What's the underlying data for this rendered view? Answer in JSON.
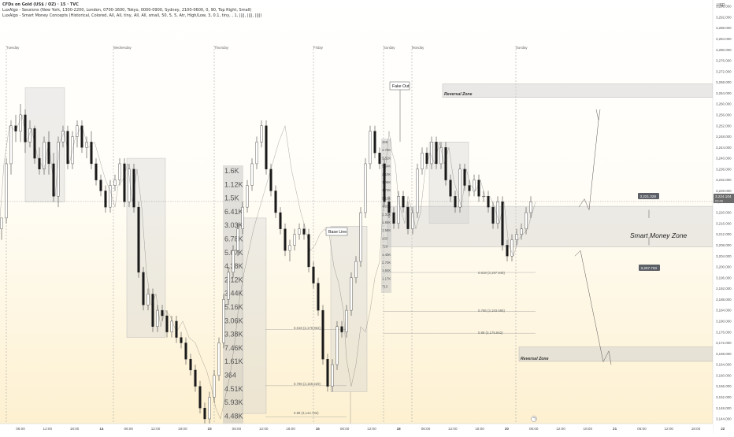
{
  "header": {
    "symbol_line": "CFDs on Gold (US$ / OZ) · 15 · TVC",
    "indicator_1": "LuxAlgo - Sessions (New York, 1300-2200, London, 0700-1600, Tokyo, 0000-0900, Sydney, 2100-0600, 0, 90, Top Right, Small)",
    "indicator_2": "LuxAlgo - Smart Money Concepts (Historical, Colored, All, All, tiny, All, All, small, 50, 5, 5, Atr, High/Low, 3, 0.1, tiny, , 1, ||||, ||||, ||||)"
  },
  "axis": {
    "currency": "USD",
    "price_ticks": [
      "3,296.000",
      "3,292.000",
      "3,288.000",
      "3,284.000",
      "3,280.000",
      "3,276.000",
      "3,272.000",
      "3,268.000",
      "3,264.000",
      "3,260.000",
      "3,256.000",
      "3,252.000",
      "3,248.000",
      "3,244.000",
      "3,240.000",
      "3,236.000",
      "3,232.000",
      "3,228.000",
      "3,224.000",
      "3,220.000",
      "3,216.000",
      "3,212.000",
      "3,208.000",
      "3,204.000",
      "3,200.000",
      "3,196.000",
      "3,192.000",
      "3,188.000",
      "3,184.000",
      "3,180.000",
      "3,176.000",
      "3,172.000",
      "3,168.000",
      "3,164.000",
      "3,160.000",
      "3,156.000",
      "3,152.000",
      "3,148.000",
      "3,144.000"
    ],
    "time_ticks": [
      "06:00",
      "12:00",
      "18:00",
      "14",
      "06:00",
      "12:00",
      "18:00",
      "15",
      "06:00",
      "12:00",
      "18:00",
      "16",
      "06:00",
      "12:00",
      "18",
      "06:00",
      "12:00",
      "18:00",
      "20",
      "06:00",
      "12:00",
      "18:00",
      "21",
      "06:00",
      "12:00",
      "18:00",
      "22"
    ],
    "day_labels": [
      "Tuesday",
      "Wednesday",
      "Thursday",
      "Friday",
      "Sunday",
      "Monday",
      "Sunday"
    ]
  },
  "price_tags": {
    "current": "3,224.104",
    "current_sub": "09:46",
    "upper": "3,221.328",
    "lower": "3,207.703"
  },
  "annotations": {
    "fake_out": "Fake Out",
    "base_line": "Base Line",
    "reversal_top": "Reversal Zone",
    "reversal_bottom": "Reversal Zone",
    "smart_money_zone": "Smart Money Zone",
    "fib_a_618": "0.618 (3,176.962)",
    "fib_a_786": "0.786 (3,156.229)",
    "fib_a_88": "0.88 (3,144.782)",
    "fib_b_618": "0.618 (3,197.945)",
    "fib_b_786": "0.786 (3,183.595)",
    "fib_b_88": "0.88 (3,175.562)"
  },
  "volume_profile": {
    "left": [
      "1.6K",
      "1.12K",
      "1.5K",
      "6.41K",
      "3.03K",
      "6.78K",
      "5.07K",
      "4.38K",
      "2.12K",
      "3.44K",
      "5.16K",
      "3.06K",
      "3.38K",
      "7.46K",
      "1.61K",
      "364",
      "4.51K",
      "5.93K",
      "4.48K"
    ],
    "right": [
      "469",
      "2.73K",
      "5.52K",
      "5.64K",
      "2.10K",
      "1.95K",
      "1.73K",
      "5.15K",
      "4.03K",
      "1.31K",
      "1.85K",
      "1.58K",
      "233",
      "729",
      "1.40K",
      "2.70K",
      "1.84K",
      "1.17K",
      "713"
    ]
  },
  "colors": {
    "up": "#ffffff",
    "down": "#1a1a1a",
    "wick": "#222222",
    "zone": "#c8c8c8",
    "bg_bottom": "#fdf0cf"
  },
  "chart_data": {
    "type": "candlestick",
    "title": "CFDs on Gold (US$ / OZ) · 15 · TVC",
    "ylabel": "USD",
    "ylim": [
      3144,
      3296
    ],
    "path_x": [
      0,
      5,
      12,
      20,
      28,
      34,
      40,
      48,
      56,
      62,
      70,
      76,
      82,
      88,
      96,
      104,
      112,
      120,
      128,
      134,
      140,
      146,
      150,
      156,
      162,
      168,
      174,
      180,
      186,
      192,
      198,
      204,
      210,
      216,
      224,
      232,
      240,
      248,
      256,
      262,
      268,
      274,
      280,
      286,
      292,
      298,
      304,
      310,
      316,
      322,
      330,
      338,
      346,
      354,
      362,
      370,
      376,
      382,
      388,
      394,
      400,
      406,
      412,
      418,
      424,
      430,
      436,
      440,
      446,
      452,
      458,
      464,
      470,
      476,
      482,
      486,
      490,
      494,
      498,
      502,
      506,
      510,
      514,
      518,
      522,
      528,
      534,
      540,
      546,
      552,
      558,
      564,
      570,
      576,
      582,
      586,
      592,
      598,
      604,
      610,
      616,
      622,
      628,
      634,
      640,
      646,
      652,
      658,
      664,
      670,
      676,
      680
    ],
    "path_y": [
      3218,
      3238,
      3252,
      3250,
      3256,
      3246,
      3251,
      3240,
      3236,
      3246,
      3226,
      3246,
      3250,
      3238,
      3248,
      3252,
      3244,
      3246,
      3238,
      3232,
      3228,
      3222,
      3230,
      3232,
      3238,
      3224,
      3236,
      3222,
      3198,
      3186,
      3190,
      3178,
      3184,
      3182,
      3176,
      3180,
      3174,
      3172,
      3166,
      3162,
      3156,
      3148,
      3144,
      3152,
      3160,
      3172,
      3188,
      3198,
      3206,
      3214,
      3222,
      3230,
      3238,
      3246,
      3252,
      3236,
      3228,
      3220,
      3214,
      3206,
      3208,
      3212,
      3214,
      3212,
      3200,
      3194,
      3184,
      3166,
      3156,
      3164,
      3178,
      3176,
      3184,
      3196,
      3202,
      3220,
      3238,
      3250,
      3242,
      3238,
      3224,
      3220,
      3216,
      3226,
      3222,
      3214,
      3220,
      3236,
      3242,
      3238,
      3246,
      3238,
      3244,
      3232,
      3226,
      3222,
      3236,
      3230,
      3228,
      3232,
      3226,
      3226,
      3222,
      3216,
      3224,
      3208,
      3204,
      3210,
      3212,
      3214,
      3220,
      3224
    ],
    "candles": [
      {
        "x": 0,
        "o": 3214,
        "h": 3218,
        "l": 3210,
        "c": 3218
      },
      {
        "x": 6,
        "o": 3218,
        "h": 3240,
        "l": 3216,
        "c": 3238
      },
      {
        "x": 12,
        "o": 3238,
        "h": 3254,
        "l": 3234,
        "c": 3252
      },
      {
        "x": 18,
        "o": 3252,
        "h": 3256,
        "l": 3246,
        "c": 3250
      },
      {
        "x": 24,
        "o": 3250,
        "h": 3260,
        "l": 3246,
        "c": 3256
      },
      {
        "x": 30,
        "o": 3256,
        "h": 3258,
        "l": 3242,
        "c": 3246
      },
      {
        "x": 36,
        "o": 3246,
        "h": 3254,
        "l": 3244,
        "c": 3251
      },
      {
        "x": 42,
        "o": 3251,
        "h": 3252,
        "l": 3238,
        "c": 3240
      },
      {
        "x": 48,
        "o": 3240,
        "h": 3244,
        "l": 3234,
        "c": 3236
      },
      {
        "x": 54,
        "o": 3236,
        "h": 3248,
        "l": 3234,
        "c": 3246
      },
      {
        "x": 60,
        "o": 3246,
        "h": 3250,
        "l": 3234,
        "c": 3238
      },
      {
        "x": 66,
        "o": 3238,
        "h": 3242,
        "l": 3224,
        "c": 3226
      },
      {
        "x": 72,
        "o": 3226,
        "h": 3248,
        "l": 3222,
        "c": 3246
      },
      {
        "x": 78,
        "o": 3246,
        "h": 3252,
        "l": 3244,
        "c": 3250
      },
      {
        "x": 84,
        "o": 3250,
        "h": 3252,
        "l": 3236,
        "c": 3238
      },
      {
        "x": 90,
        "o": 3238,
        "h": 3250,
        "l": 3236,
        "c": 3248
      },
      {
        "x": 96,
        "o": 3248,
        "h": 3254,
        "l": 3244,
        "c": 3252
      },
      {
        "x": 102,
        "o": 3252,
        "h": 3254,
        "l": 3242,
        "c": 3244
      },
      {
        "x": 108,
        "o": 3244,
        "h": 3248,
        "l": 3240,
        "c": 3246
      },
      {
        "x": 114,
        "o": 3246,
        "h": 3250,
        "l": 3236,
        "c": 3238
      },
      {
        "x": 120,
        "o": 3238,
        "h": 3240,
        "l": 3230,
        "c": 3232
      },
      {
        "x": 126,
        "o": 3232,
        "h": 3234,
        "l": 3226,
        "c": 3228
      },
      {
        "x": 132,
        "o": 3228,
        "h": 3230,
        "l": 3220,
        "c": 3222
      },
      {
        "x": 138,
        "o": 3222,
        "h": 3232,
        "l": 3220,
        "c": 3230
      },
      {
        "x": 144,
        "o": 3230,
        "h": 3234,
        "l": 3228,
        "c": 3232
      },
      {
        "x": 150,
        "o": 3232,
        "h": 3240,
        "l": 3230,
        "c": 3238
      },
      {
        "x": 156,
        "o": 3238,
        "h": 3240,
        "l": 3222,
        "c": 3224
      },
      {
        "x": 162,
        "o": 3224,
        "h": 3238,
        "l": 3222,
        "c": 3236
      },
      {
        "x": 168,
        "o": 3236,
        "h": 3238,
        "l": 3220,
        "c": 3222
      },
      {
        "x": 174,
        "o": 3222,
        "h": 3224,
        "l": 3196,
        "c": 3198
      },
      {
        "x": 180,
        "o": 3198,
        "h": 3200,
        "l": 3184,
        "c": 3186
      },
      {
        "x": 186,
        "o": 3186,
        "h": 3192,
        "l": 3184,
        "c": 3190
      },
      {
        "x": 192,
        "o": 3190,
        "h": 3192,
        "l": 3176,
        "c": 3178
      },
      {
        "x": 198,
        "o": 3178,
        "h": 3186,
        "l": 3176,
        "c": 3184
      },
      {
        "x": 204,
        "o": 3184,
        "h": 3186,
        "l": 3180,
        "c": 3182
      },
      {
        "x": 210,
        "o": 3182,
        "h": 3184,
        "l": 3174,
        "c": 3176
      },
      {
        "x": 216,
        "o": 3176,
        "h": 3182,
        "l": 3174,
        "c": 3180
      },
      {
        "x": 222,
        "o": 3180,
        "h": 3182,
        "l": 3172,
        "c": 3174
      },
      {
        "x": 228,
        "o": 3174,
        "h": 3176,
        "l": 3170,
        "c": 3172
      },
      {
        "x": 234,
        "o": 3172,
        "h": 3174,
        "l": 3164,
        "c": 3166
      },
      {
        "x": 240,
        "o": 3166,
        "h": 3168,
        "l": 3160,
        "c": 3162
      },
      {
        "x": 246,
        "o": 3162,
        "h": 3164,
        "l": 3154,
        "c": 3156
      },
      {
        "x": 252,
        "o": 3156,
        "h": 3158,
        "l": 3146,
        "c": 3148
      },
      {
        "x": 258,
        "o": 3148,
        "h": 3150,
        "l": 3142,
        "c": 3144
      },
      {
        "x": 264,
        "o": 3144,
        "h": 3154,
        "l": 3142,
        "c": 3152
      },
      {
        "x": 270,
        "o": 3152,
        "h": 3162,
        "l": 3150,
        "c": 3160
      },
      {
        "x": 276,
        "o": 3160,
        "h": 3174,
        "l": 3158,
        "c": 3172
      },
      {
        "x": 282,
        "o": 3172,
        "h": 3190,
        "l": 3170,
        "c": 3188
      },
      {
        "x": 288,
        "o": 3188,
        "h": 3200,
        "l": 3186,
        "c": 3198
      },
      {
        "x": 294,
        "o": 3198,
        "h": 3208,
        "l": 3196,
        "c": 3206
      },
      {
        "x": 300,
        "o": 3206,
        "h": 3216,
        "l": 3204,
        "c": 3214
      },
      {
        "x": 306,
        "o": 3214,
        "h": 3224,
        "l": 3212,
        "c": 3222
      },
      {
        "x": 312,
        "o": 3222,
        "h": 3232,
        "l": 3220,
        "c": 3230
      },
      {
        "x": 318,
        "o": 3230,
        "h": 3240,
        "l": 3228,
        "c": 3238
      },
      {
        "x": 324,
        "o": 3238,
        "h": 3248,
        "l": 3236,
        "c": 3246
      },
      {
        "x": 330,
        "o": 3246,
        "h": 3254,
        "l": 3244,
        "c": 3252
      },
      {
        "x": 336,
        "o": 3252,
        "h": 3254,
        "l": 3234,
        "c": 3236
      },
      {
        "x": 342,
        "o": 3236,
        "h": 3238,
        "l": 3226,
        "c": 3228
      },
      {
        "x": 348,
        "o": 3228,
        "h": 3230,
        "l": 3218,
        "c": 3220
      },
      {
        "x": 354,
        "o": 3220,
        "h": 3222,
        "l": 3212,
        "c": 3214
      },
      {
        "x": 360,
        "o": 3214,
        "h": 3216,
        "l": 3204,
        "c": 3206
      },
      {
        "x": 366,
        "o": 3206,
        "h": 3210,
        "l": 3202,
        "c": 3208
      },
      {
        "x": 372,
        "o": 3208,
        "h": 3214,
        "l": 3206,
        "c": 3212
      },
      {
        "x": 378,
        "o": 3212,
        "h": 3216,
        "l": 3210,
        "c": 3214
      },
      {
        "x": 384,
        "o": 3214,
        "h": 3216,
        "l": 3210,
        "c": 3212
      },
      {
        "x": 390,
        "o": 3212,
        "h": 3214,
        "l": 3198,
        "c": 3200
      },
      {
        "x": 396,
        "o": 3200,
        "h": 3202,
        "l": 3192,
        "c": 3194
      },
      {
        "x": 402,
        "o": 3194,
        "h": 3196,
        "l": 3182,
        "c": 3184
      },
      {
        "x": 408,
        "o": 3184,
        "h": 3186,
        "l": 3164,
        "c": 3166
      },
      {
        "x": 414,
        "o": 3166,
        "h": 3168,
        "l": 3154,
        "c": 3156
      },
      {
        "x": 420,
        "o": 3156,
        "h": 3166,
        "l": 3154,
        "c": 3164
      },
      {
        "x": 426,
        "o": 3164,
        "h": 3180,
        "l": 3162,
        "c": 3178
      },
      {
        "x": 432,
        "o": 3178,
        "h": 3180,
        "l": 3174,
        "c": 3176
      },
      {
        "x": 438,
        "o": 3176,
        "h": 3186,
        "l": 3174,
        "c": 3184
      },
      {
        "x": 444,
        "o": 3184,
        "h": 3198,
        "l": 3182,
        "c": 3196
      },
      {
        "x": 450,
        "o": 3196,
        "h": 3204,
        "l": 3194,
        "c": 3202
      },
      {
        "x": 456,
        "o": 3202,
        "h": 3222,
        "l": 3200,
        "c": 3220
      },
      {
        "x": 462,
        "o": 3220,
        "h": 3240,
        "l": 3218,
        "c": 3238
      },
      {
        "x": 468,
        "o": 3238,
        "h": 3252,
        "l": 3236,
        "c": 3250
      },
      {
        "x": 474,
        "o": 3250,
        "h": 3252,
        "l": 3240,
        "c": 3242
      },
      {
        "x": 480,
        "o": 3242,
        "h": 3244,
        "l": 3236,
        "c": 3238
      },
      {
        "x": 486,
        "o": 3238,
        "h": 3240,
        "l": 3222,
        "c": 3224
      },
      {
        "x": 492,
        "o": 3224,
        "h": 3226,
        "l": 3218,
        "c": 3220
      },
      {
        "x": 498,
        "o": 3220,
        "h": 3222,
        "l": 3214,
        "c": 3216
      },
      {
        "x": 504,
        "o": 3216,
        "h": 3228,
        "l": 3214,
        "c": 3226
      },
      {
        "x": 510,
        "o": 3226,
        "h": 3228,
        "l": 3220,
        "c": 3222
      },
      {
        "x": 516,
        "o": 3222,
        "h": 3224,
        "l": 3212,
        "c": 3214
      },
      {
        "x": 522,
        "o": 3214,
        "h": 3222,
        "l": 3212,
        "c": 3220
      },
      {
        "x": 528,
        "o": 3220,
        "h": 3238,
        "l": 3218,
        "c": 3236
      },
      {
        "x": 534,
        "o": 3236,
        "h": 3244,
        "l": 3234,
        "c": 3242
      },
      {
        "x": 540,
        "o": 3242,
        "h": 3244,
        "l": 3236,
        "c": 3238
      },
      {
        "x": 546,
        "o": 3238,
        "h": 3248,
        "l": 3236,
        "c": 3246
      },
      {
        "x": 552,
        "o": 3246,
        "h": 3248,
        "l": 3236,
        "c": 3238
      },
      {
        "x": 558,
        "o": 3238,
        "h": 3246,
        "l": 3236,
        "c": 3244
      },
      {
        "x": 564,
        "o": 3244,
        "h": 3246,
        "l": 3230,
        "c": 3232
      },
      {
        "x": 570,
        "o": 3232,
        "h": 3234,
        "l": 3224,
        "c": 3226
      },
      {
        "x": 576,
        "o": 3226,
        "h": 3228,
        "l": 3220,
        "c": 3222
      },
      {
        "x": 582,
        "o": 3222,
        "h": 3238,
        "l": 3220,
        "c": 3236
      },
      {
        "x": 588,
        "o": 3236,
        "h": 3238,
        "l": 3228,
        "c": 3230
      },
      {
        "x": 594,
        "o": 3230,
        "h": 3232,
        "l": 3226,
        "c": 3228
      },
      {
        "x": 600,
        "o": 3228,
        "h": 3234,
        "l": 3226,
        "c": 3232
      },
      {
        "x": 606,
        "o": 3232,
        "h": 3234,
        "l": 3224,
        "c": 3226
      },
      {
        "x": 612,
        "o": 3226,
        "h": 3228,
        "l": 3224,
        "c": 3226
      },
      {
        "x": 618,
        "o": 3226,
        "h": 3228,
        "l": 3220,
        "c": 3222
      },
      {
        "x": 624,
        "o": 3222,
        "h": 3224,
        "l": 3214,
        "c": 3216
      },
      {
        "x": 630,
        "o": 3216,
        "h": 3226,
        "l": 3214,
        "c": 3224
      },
      {
        "x": 636,
        "o": 3224,
        "h": 3226,
        "l": 3206,
        "c": 3208
      },
      {
        "x": 642,
        "o": 3208,
        "h": 3210,
        "l": 3202,
        "c": 3204
      },
      {
        "x": 648,
        "o": 3204,
        "h": 3212,
        "l": 3202,
        "c": 3210
      },
      {
        "x": 654,
        "o": 3210,
        "h": 3214,
        "l": 3208,
        "c": 3212
      },
      {
        "x": 660,
        "o": 3212,
        "h": 3216,
        "l": 3210,
        "c": 3214
      },
      {
        "x": 666,
        "o": 3214,
        "h": 3222,
        "l": 3212,
        "c": 3220
      },
      {
        "x": 672,
        "o": 3220,
        "h": 3226,
        "l": 3218,
        "c": 3224
      }
    ]
  }
}
